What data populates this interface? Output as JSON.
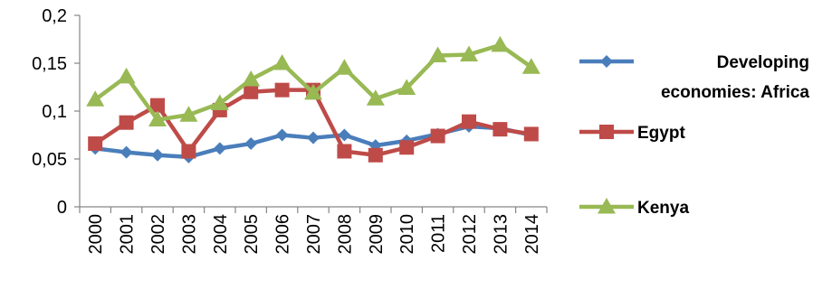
{
  "chart_data": {
    "type": "line",
    "title": "",
    "xlabel": "",
    "ylabel": "",
    "categories": [
      "2000",
      "2001",
      "2002",
      "2003",
      "2004",
      "2005",
      "2006",
      "2007",
      "2008",
      "2009",
      "2010",
      "2011",
      "2012",
      "2013",
      "2014"
    ],
    "ylim": [
      0,
      0.2
    ],
    "yticks": [
      "0",
      "0,05",
      "0,1",
      "0,15",
      "0,2"
    ],
    "ytick_values": [
      0,
      0.05,
      0.1,
      0.15,
      0.2
    ],
    "grid": false,
    "legend_position": "right",
    "series": [
      {
        "name_lines": [
          "Developing",
          "economies: Africa"
        ],
        "color": "#4a7ebb",
        "marker": "diamond",
        "values": [
          0.061,
          0.057,
          0.054,
          0.052,
          0.061,
          0.066,
          0.075,
          0.072,
          0.075,
          0.064,
          0.069,
          0.076,
          0.084,
          0.082,
          0.075
        ]
      },
      {
        "name_lines": [
          "Egypt"
        ],
        "color": "#be4b48",
        "marker": "square",
        "values": [
          0.066,
          0.088,
          0.106,
          0.058,
          0.101,
          0.12,
          0.122,
          0.122,
          0.058,
          0.054,
          0.062,
          0.074,
          0.089,
          0.081,
          0.076
        ]
      },
      {
        "name_lines": [
          "Kenya"
        ],
        "color": "#98b954",
        "marker": "triangle",
        "values": [
          0.112,
          0.136,
          0.091,
          0.096,
          0.108,
          0.133,
          0.15,
          0.119,
          0.145,
          0.113,
          0.124,
          0.158,
          0.159,
          0.169,
          0.146
        ]
      }
    ]
  }
}
